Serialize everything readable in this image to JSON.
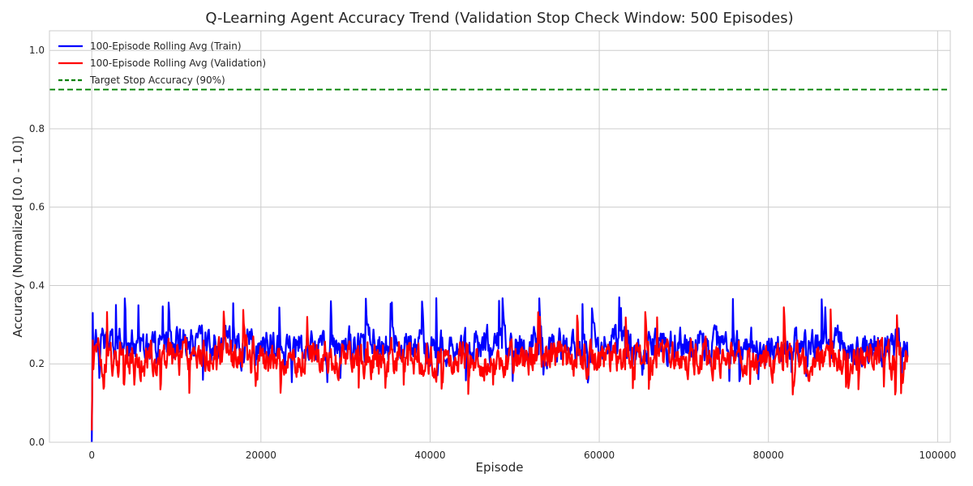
{
  "chart_data": {
    "type": "line",
    "title": "Q-Learning Agent Accuracy Trend (Validation Stop Check Window: 500 Episodes)",
    "xlabel": "Episode",
    "ylabel": "Accuracy (Normalized [0.0 - 1.0])",
    "xlim": [
      -5000,
      101500
    ],
    "ylim": [
      0.0,
      1.05
    ],
    "xticks": [
      0,
      20000,
      40000,
      60000,
      80000,
      100000
    ],
    "xtick_labels": [
      "0",
      "20000",
      "40000",
      "60000",
      "80000",
      "100000"
    ],
    "yticks": [
      0.0,
      0.2,
      0.4,
      0.6,
      0.8,
      1.0
    ],
    "ytick_labels": [
      "0.0",
      "0.2",
      "0.4",
      "0.6",
      "0.8",
      "1.0"
    ],
    "grid": true,
    "legend_position": "top-left",
    "series": [
      {
        "name": "100-Episode Rolling Avg (Train)",
        "color": "#0000ff",
        "style": "solid",
        "x_start": 0,
        "x_end": 96500,
        "initial": [
          0.0,
          0.33
        ],
        "mean": 0.245,
        "min": 0.15,
        "max": 0.37
      },
      {
        "name": "100-Episode Rolling Avg (Validation)",
        "color": "#ff0000",
        "style": "solid",
        "x_start": 0,
        "x_end": 96500,
        "initial": [
          0.03,
          0.26
        ],
        "mean": 0.215,
        "min": 0.12,
        "max": 0.345
      }
    ],
    "reference_lines": [
      {
        "name": "Target Stop Accuracy (90%)",
        "y": 0.9,
        "color": "#008000",
        "style": "dashed"
      }
    ]
  }
}
